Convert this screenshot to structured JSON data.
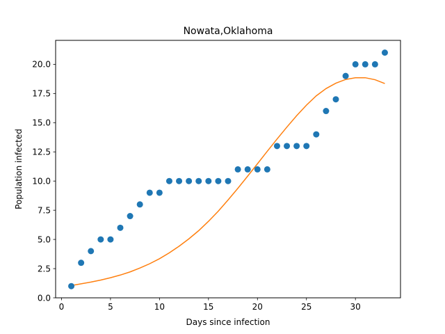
{
  "chart_data": {
    "type": "scatter",
    "title": "Nowata,Oklahoma",
    "xlabel": "Days since infection",
    "ylabel": "Population infected",
    "xlim": [
      -0.6,
      34.6
    ],
    "ylim": [
      0,
      22.05
    ],
    "x_ticks": [
      0,
      5,
      10,
      15,
      20,
      25,
      30
    ],
    "x_tick_labels": [
      "0",
      "5",
      "10",
      "15",
      "20",
      "25",
      "30"
    ],
    "y_ticks": [
      0,
      2.5,
      5,
      7.5,
      10,
      12.5,
      15,
      17.5,
      20
    ],
    "y_tick_labels": [
      "0.0",
      "2.5",
      "5.0",
      "7.5",
      "10.0",
      "12.5",
      "15.0",
      "17.5",
      "20.0"
    ],
    "grid": false,
    "series": [
      {
        "kind": "scatter",
        "color": "#1f77b4",
        "x": [
          1,
          2,
          3,
          4,
          5,
          6,
          7,
          8,
          9,
          10,
          11,
          12,
          13,
          14,
          15,
          16,
          17,
          18,
          19,
          20,
          21,
          22,
          23,
          24,
          25,
          26,
          27,
          28,
          29,
          30,
          31,
          32,
          33
        ],
        "y": [
          1,
          3,
          4,
          5,
          5,
          6,
          7,
          8,
          9,
          9,
          10,
          10,
          10,
          10,
          10,
          10,
          10,
          11,
          11,
          11,
          11,
          13,
          13,
          13,
          13,
          14,
          16,
          17,
          19,
          20,
          20,
          20,
          21
        ]
      },
      {
        "kind": "line",
        "color": "#ff7f0e",
        "x": [
          1,
          2,
          3,
          4,
          5,
          6,
          7,
          8,
          9,
          10,
          11,
          12,
          13,
          14,
          15,
          16,
          17,
          18,
          19,
          20,
          21,
          22,
          23,
          24,
          25,
          26,
          27,
          28,
          29,
          30,
          31,
          32,
          33
        ],
        "y": [
          1.05,
          1.2,
          1.35,
          1.52,
          1.72,
          1.95,
          2.22,
          2.55,
          2.92,
          3.35,
          3.85,
          4.42,
          5.05,
          5.75,
          6.55,
          7.42,
          8.38,
          9.38,
          10.42,
          11.48,
          12.55,
          13.6,
          14.62,
          15.6,
          16.5,
          17.3,
          17.92,
          18.38,
          18.7,
          18.85,
          18.85,
          18.68,
          18.35
        ]
      }
    ]
  }
}
